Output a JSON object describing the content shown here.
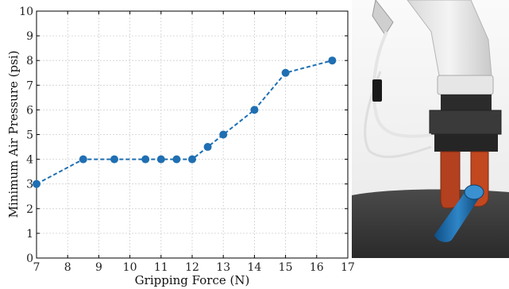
{
  "chart_data": {
    "type": "line",
    "title": "",
    "xlabel": "Gripping Force (N)",
    "ylabel": "Minimum Air Pressure (psi)",
    "xlim": [
      7,
      17
    ],
    "ylim": [
      0,
      10
    ],
    "x_ticks": [
      7,
      8,
      9,
      10,
      11,
      12,
      13,
      14,
      15,
      16,
      17
    ],
    "y_ticks": [
      0,
      1,
      2,
      3,
      4,
      5,
      6,
      7,
      8,
      9,
      10
    ],
    "grid": true,
    "series": [
      {
        "color": "#1f6fb2",
        "line_style": "dashed",
        "marker": "circle",
        "x": [
          7,
          8.5,
          9.5,
          10.5,
          11,
          11.5,
          12,
          12.5,
          13,
          14,
          15,
          16.5
        ],
        "y": [
          3,
          4,
          4,
          4,
          4,
          4,
          4,
          4.5,
          5,
          6,
          7.5,
          8
        ]
      }
    ]
  },
  "photo": {
    "subject": "robotic gripper holding blue cylinder"
  }
}
